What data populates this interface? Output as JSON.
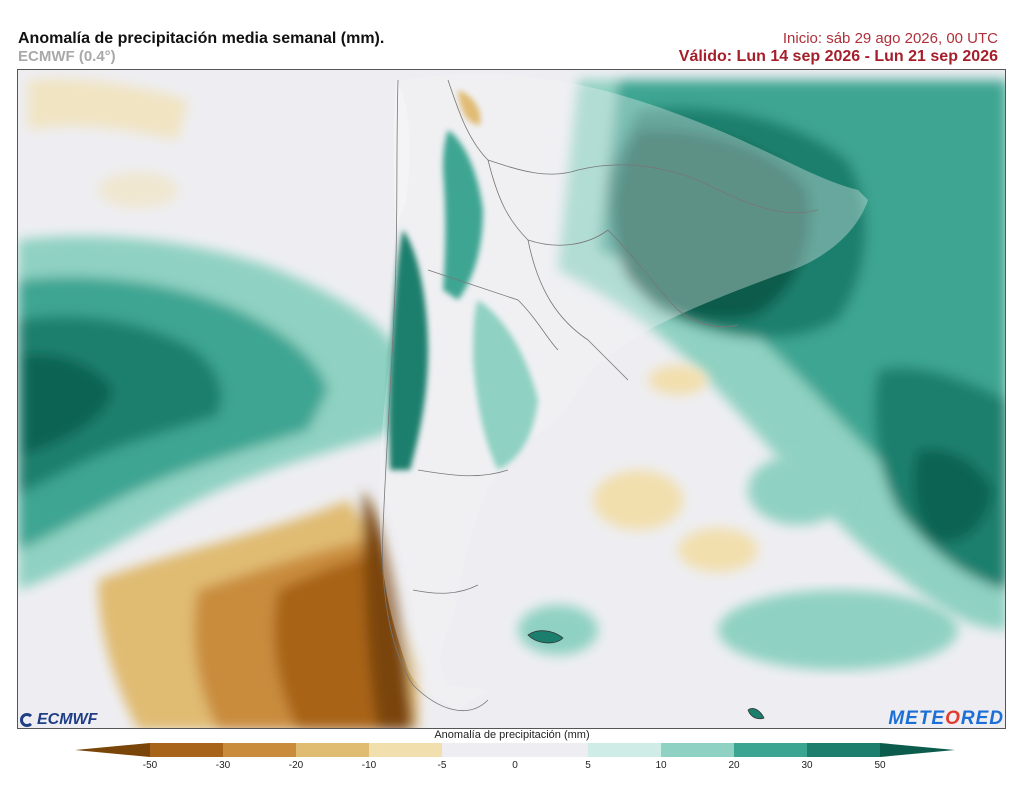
{
  "header": {
    "title": "Anomalía de precipitación media semanal (mm).",
    "model": "ECMWF (0.4°)",
    "init": "Inicio:  sáb 29 ago 2026, 00 UTC",
    "valid": "Válido: Lun 14 sep 2026 - Lun 21 sep 2026"
  },
  "logos": {
    "left": "ECMWF",
    "right_a": "METE",
    "right_o": "O",
    "right_b": "RED"
  },
  "legend": {
    "title": "Anomalía de precipitación (mm)",
    "ticks": [
      "-50",
      "-30",
      "-20",
      "-10",
      "-5",
      "0",
      "5",
      "10",
      "20",
      "30",
      "50"
    ],
    "colors": [
      "#7a4509",
      "#a86418",
      "#c98c3c",
      "#e0bb72",
      "#f2dfae",
      "#eeeef2",
      "#eeeef2",
      "#cfece6",
      "#8fd1c2",
      "#3ca592",
      "#1c7f6d",
      "#0b5c4c"
    ]
  },
  "map": {
    "region": "South America – southern cone",
    "colors": {
      "wet_strong": "#0b5c4c",
      "wet": "#1c7f6d",
      "wet_mid": "#3ca592",
      "wet_light": "#8fd1c2",
      "wet_faint": "#cfece6",
      "neutral": "#eeeef2",
      "dry_faint": "#f2dfae",
      "dry_light": "#e0bb72",
      "dry_mid": "#c98c3c",
      "dry": "#a86418",
      "dry_strong": "#7a4509",
      "land": "#f4f4f6",
      "border": "#777777"
    }
  }
}
